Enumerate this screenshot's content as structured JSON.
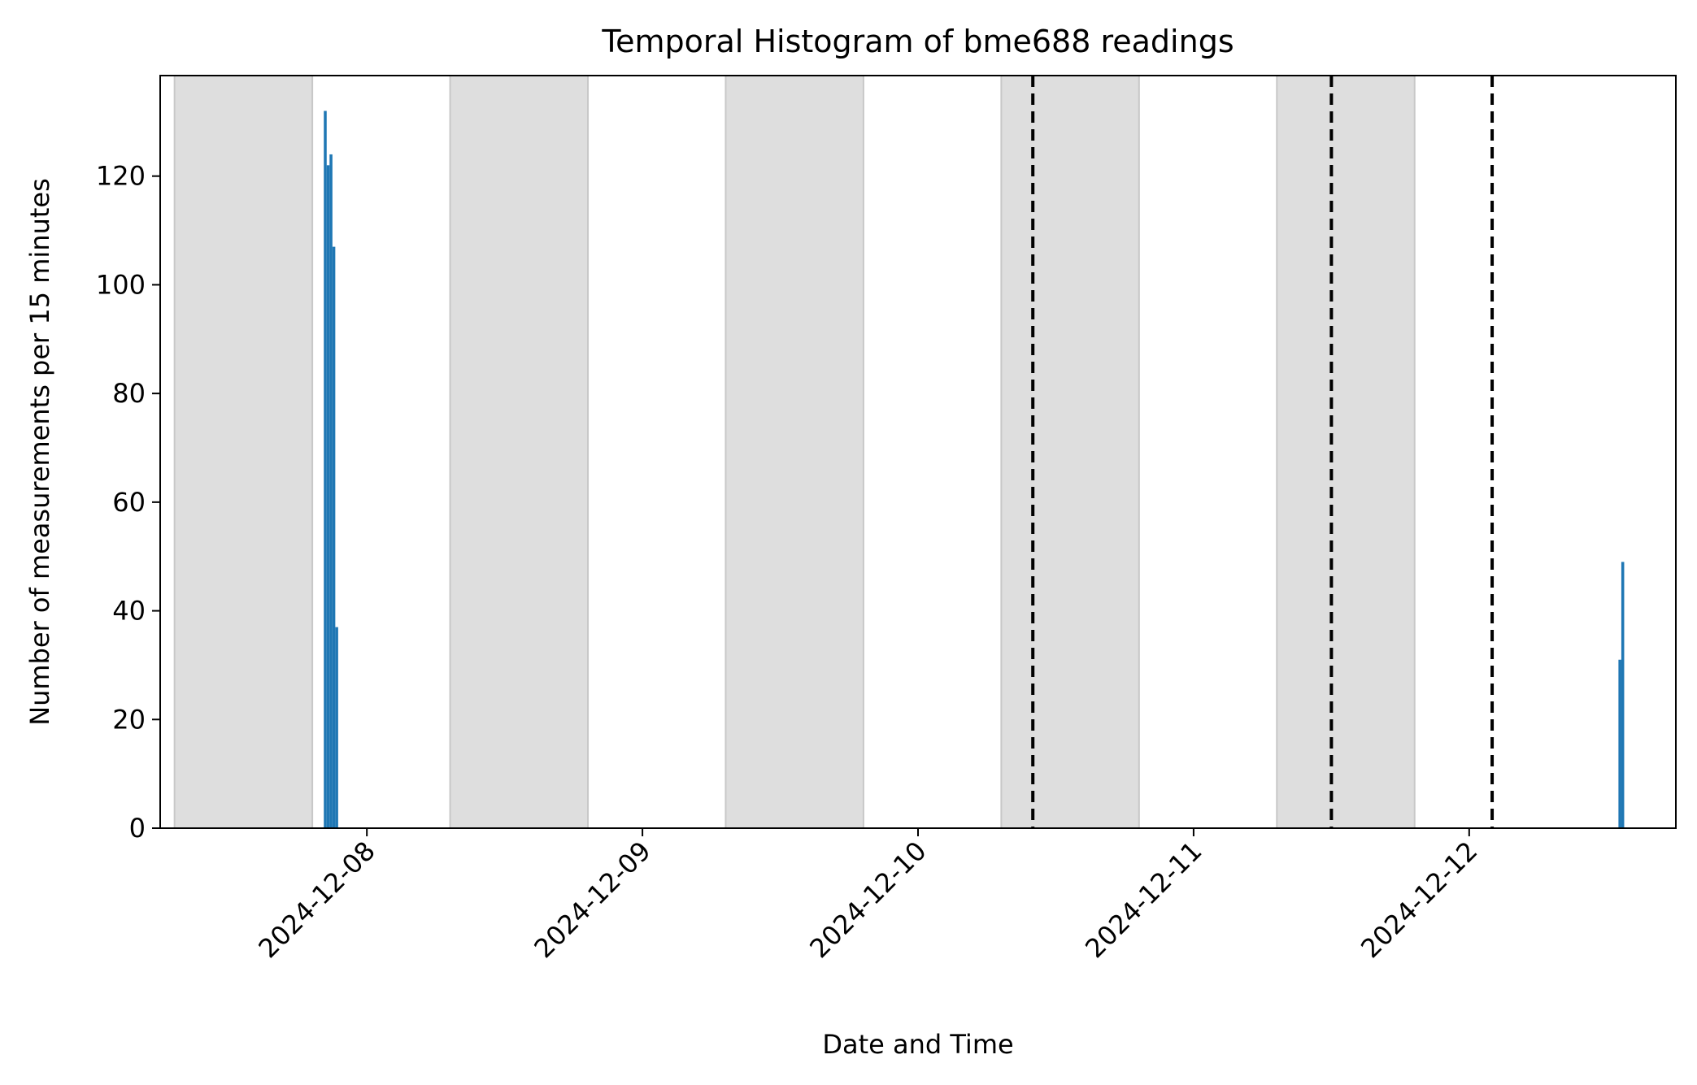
{
  "chart_data": {
    "type": "bar",
    "title": "Temporal Histogram of bme688 readings",
    "xlabel": "Date and Time",
    "ylabel": "Number of measurements per 15 minutes",
    "xlim": [
      "2024-12-07 06:00",
      "2024-12-12 18:00"
    ],
    "ylim": [
      0,
      138.5
    ],
    "bin_minutes": 15,
    "x_ticks": [
      "2024-12-08",
      "2024-12-09",
      "2024-12-10",
      "2024-12-11",
      "2024-12-12"
    ],
    "y_ticks": [
      0,
      20,
      40,
      60,
      80,
      100,
      120
    ],
    "bins": [
      {
        "start": "2024-12-07 20:15",
        "count": 132
      },
      {
        "start": "2024-12-07 20:30",
        "count": 122
      },
      {
        "start": "2024-12-07 20:45",
        "count": 124
      },
      {
        "start": "2024-12-07 21:00",
        "count": 107
      },
      {
        "start": "2024-12-07 21:15",
        "count": 37
      },
      {
        "start": "2024-12-12 13:00",
        "count": 31
      },
      {
        "start": "2024-12-12 13:15",
        "count": 49
      }
    ],
    "night_bands": [
      {
        "start": "2024-12-07 07:15",
        "end": "2024-12-07 19:15"
      },
      {
        "start": "2024-12-08 07:15",
        "end": "2024-12-08 19:15"
      },
      {
        "start": "2024-12-09 07:15",
        "end": "2024-12-09 19:15"
      },
      {
        "start": "2024-12-10 07:15",
        "end": "2024-12-10 19:15"
      },
      {
        "start": "2024-12-11 07:15",
        "end": "2024-12-11 19:15"
      }
    ],
    "vertical_lines": [
      "2024-12-10 10:00",
      "2024-12-11 12:00",
      "2024-12-12 02:00"
    ],
    "colors": {
      "bar": "#1f77b4",
      "band": "#dedede",
      "band_edge": "#c8c8c8",
      "vline": "#000000"
    },
    "grid": false,
    "legend": "none"
  }
}
